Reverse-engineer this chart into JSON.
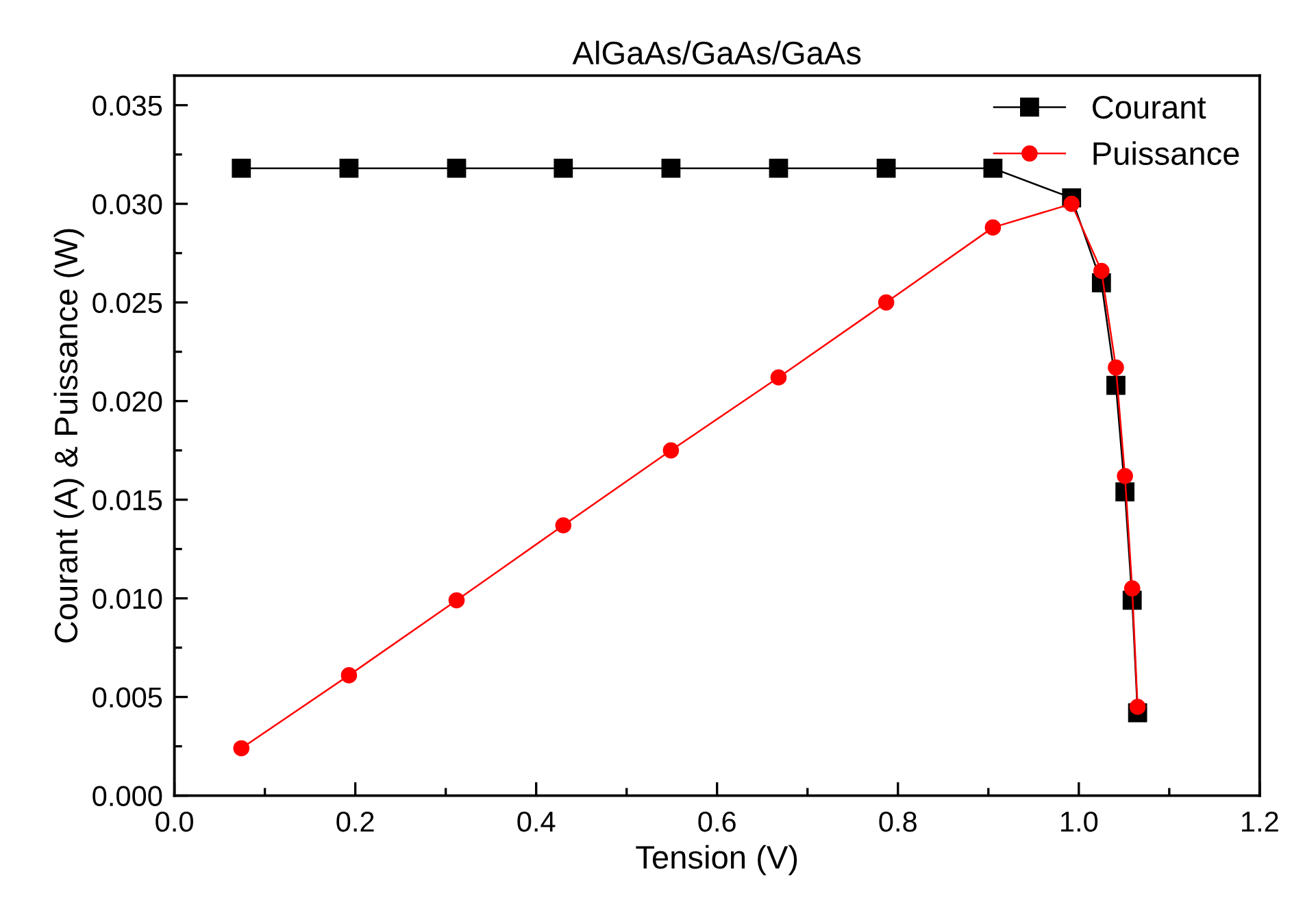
{
  "chart_data": {
    "type": "line",
    "title": "AlGaAs/GaAs/GaAs",
    "xlabel": "Tension (V)",
    "ylabel": "Courant (A) & Puissance (W)",
    "x": [
      0.074,
      0.193,
      0.312,
      0.43,
      0.549,
      0.668,
      0.787,
      0.905,
      0.992,
      1.025,
      1.041,
      1.051,
      1.059,
      1.065
    ],
    "series": [
      {
        "name": "Courant",
        "color": "#000000",
        "marker": "square",
        "values": [
          0.0318,
          0.0318,
          0.0318,
          0.0318,
          0.0318,
          0.0318,
          0.0318,
          0.0318,
          0.0303,
          0.026,
          0.0208,
          0.0154,
          0.0099,
          0.0042
        ]
      },
      {
        "name": "Puissance",
        "color": "#ff0000",
        "marker": "circle",
        "values": [
          0.0024,
          0.0061,
          0.0099,
          0.0137,
          0.0175,
          0.0212,
          0.025,
          0.0288,
          0.03,
          0.0266,
          0.0217,
          0.0162,
          0.0105,
          0.0045
        ]
      }
    ],
    "xlim": [
      0.0,
      1.2
    ],
    "xticks": [
      {
        "value": 0,
        "label": "0.0"
      },
      {
        "value": 0.1,
        "label": null
      },
      0.2,
      {
        "value": 0.3,
        "label": null
      },
      0.4,
      {
        "value": 0.5,
        "label": null
      },
      0.6,
      {
        "value": 0.7,
        "label": null
      },
      0.8,
      {
        "value": 0.9,
        "label": null
      },
      {
        "value": 1,
        "label": "1.0"
      },
      {
        "value": 1.1,
        "label": null
      },
      1.2
    ],
    "ylim": [
      0.0,
      0.0365
    ],
    "yticks": [
      {
        "value": 0,
        "label": "0.000"
      },
      {
        "value": 0.0025,
        "label": null
      },
      {
        "value": 0.005,
        "label": "0.005"
      },
      {
        "value": 0.0075,
        "label": null
      },
      {
        "value": 0.01,
        "label": "0.010"
      },
      {
        "value": 0.0125,
        "label": null
      },
      {
        "value": 0.015,
        "label": "0.015"
      },
      {
        "value": 0.0175,
        "label": null
      },
      {
        "value": 0.02,
        "label": "0.020"
      },
      {
        "value": 0.0225,
        "label": null
      },
      {
        "value": 0.025,
        "label": "0.025"
      },
      {
        "value": 0.0275,
        "label": null
      },
      {
        "value": 0.03,
        "label": "0.030"
      },
      {
        "value": 0.0325,
        "label": null
      },
      {
        "value": 0.035,
        "label": "0.035"
      }
    ],
    "grid": false,
    "legend": "top right",
    "line_style": "solid"
  }
}
